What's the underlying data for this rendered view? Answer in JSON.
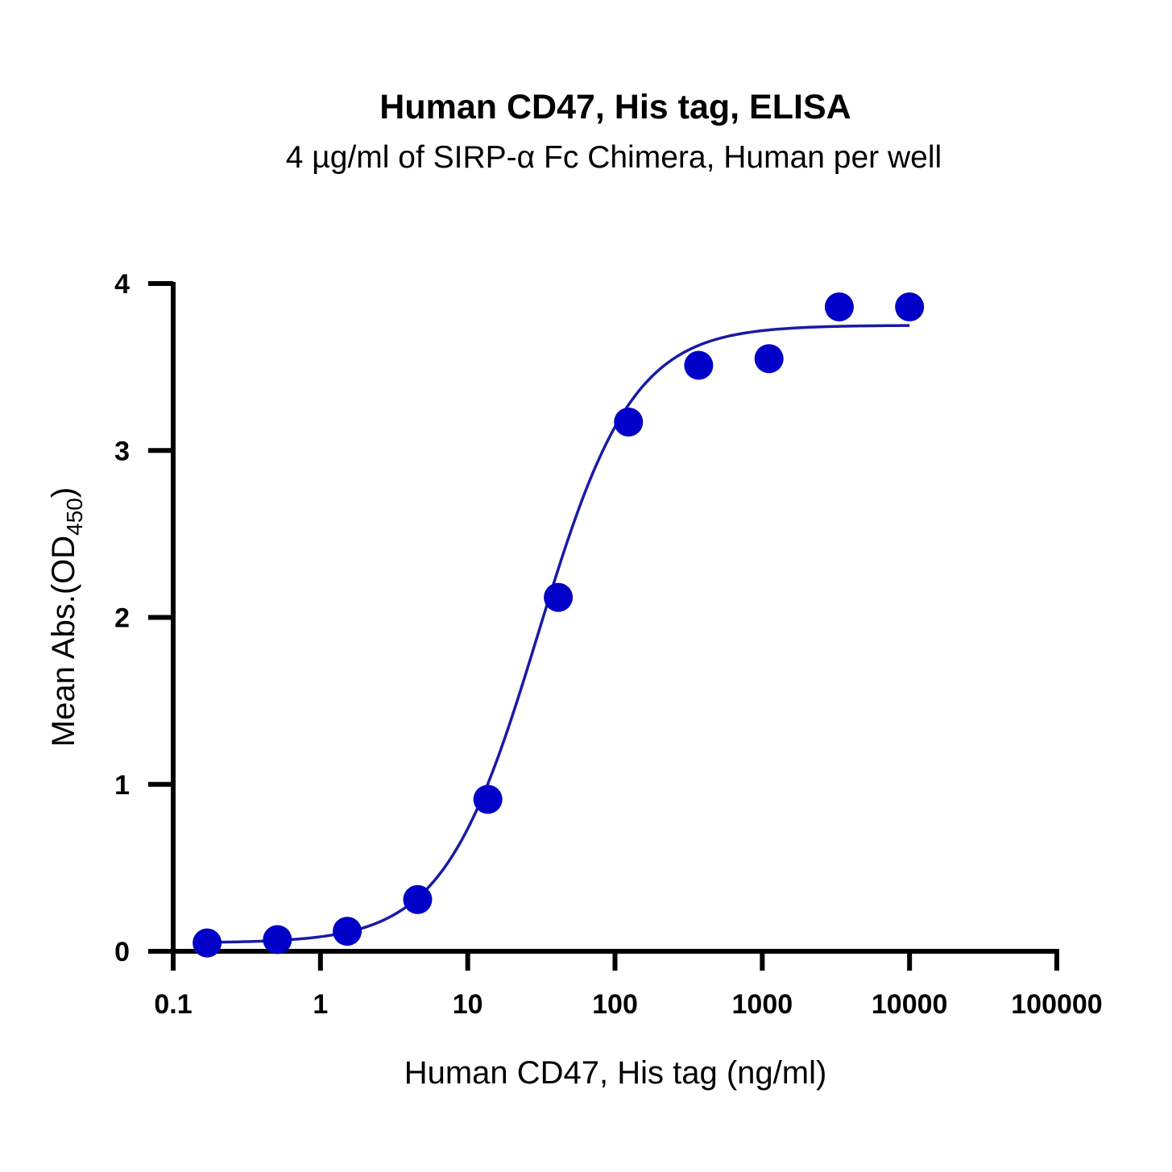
{
  "chart_data": {
    "type": "scatter",
    "title": "Human CD47, His tag, ELISA",
    "subtitle": "4 µg/ml of SIRP-α Fc Chimera, Human per well",
    "xlabel": "Human CD47, His tag (ng/ml)",
    "ylabel": {
      "main": "Mean Abs.(OD",
      "subscript": "450",
      "close": ")"
    },
    "xscale": "log10",
    "xlim": [
      0.1,
      100000
    ],
    "ylim": [
      0,
      4
    ],
    "xticks": [
      0.1,
      1,
      10,
      100,
      1000,
      10000,
      100000
    ],
    "xtick_labels": [
      "0.1",
      "1",
      "10",
      "100",
      "1000",
      "10000",
      "100000"
    ],
    "yticks": [
      0,
      1,
      2,
      3,
      4
    ],
    "ytick_labels": [
      "0",
      "1",
      "2",
      "3",
      "4"
    ],
    "series": [
      {
        "name": "Human CD47, His tag",
        "x": [
          0.17,
          0.51,
          1.52,
          4.57,
          13.7,
          41.2,
          123.5,
          370,
          1111,
          3333,
          10000
        ],
        "y": [
          0.05,
          0.07,
          0.12,
          0.31,
          0.91,
          2.12,
          3.17,
          3.51,
          3.55,
          3.86,
          3.86
        ],
        "color": "#0000c8"
      }
    ],
    "fit": {
      "model": "4PL",
      "bottom": 0.05,
      "top": 3.75,
      "ec50": 30,
      "hill": 1.35,
      "x_range": [
        0.17,
        10000
      ],
      "color": "#1a1aa6"
    },
    "grid": false
  },
  "colors": {
    "point": "#0000c8",
    "curve": "#1a1aa6",
    "axis": "#000000"
  }
}
